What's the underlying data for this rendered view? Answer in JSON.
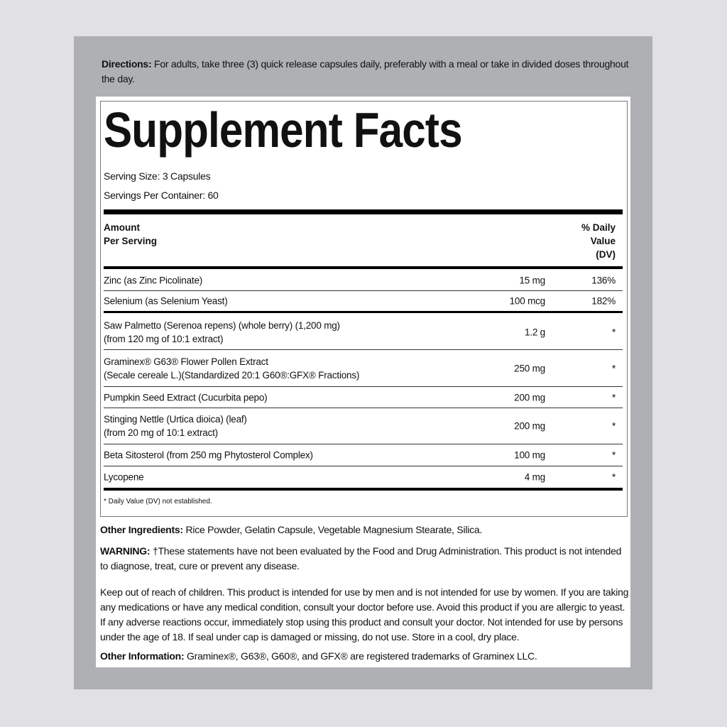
{
  "directions": {
    "label": "Directions:",
    "text": " For adults, take three (3) quick release capsules daily, preferably with a meal or take in divided doses throughout the day."
  },
  "facts": {
    "title": "Supplement Facts",
    "serving_size": "Serving Size: 3 Capsules",
    "servings_per_container": "Servings Per Container: 60",
    "header_amount_1": "Amount",
    "header_amount_2": "Per Serving",
    "header_dv_1": "% Daily",
    "header_dv_2": "Value",
    "header_dv_3": "(DV)",
    "rows": [
      {
        "name1": "Zinc (as Zinc Picolinate)",
        "name2": "",
        "amount": "15 mg",
        "dv": "136%"
      },
      {
        "name1": "Selenium (as Selenium Yeast)",
        "name2": "",
        "amount": "100 mcg",
        "dv": "182%"
      },
      {
        "name1": "Saw Palmetto (Serenoa repens) (whole berry) (1,200 mg)",
        "name2": "(from 120 mg of 10:1 extract)",
        "amount": "1.2 g",
        "dv": "*"
      },
      {
        "name1": "Graminex® G63® Flower Pollen Extract",
        "name2": "(Secale cereale L.)(Standardized 20:1 G60®:GFX® Fractions)",
        "amount": "250 mg",
        "dv": "*"
      },
      {
        "name1": "Pumpkin Seed Extract (Cucurbita pepo)",
        "name2": "",
        "amount": "200 mg",
        "dv": "*"
      },
      {
        "name1": "Stinging Nettle (Urtica dioica) (leaf)",
        "name2": "(from 20 mg of 10:1 extract)",
        "amount": "200 mg",
        "dv": "*"
      },
      {
        "name1": "Beta Sitosterol (from 250 mg Phytosterol Complex)",
        "name2": "",
        "amount": "100 mg",
        "dv": "*"
      },
      {
        "name1": "Lycopene",
        "name2": "",
        "amount": "4 mg",
        "dv": "*"
      }
    ],
    "footnote": "* Daily Value (DV) not established."
  },
  "other_ingredients": {
    "label": "Other Ingredients:",
    "text": " Rice Powder, Gelatin Capsule, Vegetable Magnesium Stearate, Silica."
  },
  "warning": {
    "label": "WARNING:",
    "text": " †These statements have not been evaluated by the Food and Drug Administration. This product is not intended to diagnose, treat, cure or prevent any disease."
  },
  "caution": "Keep out of reach of children. This product is intended for use by men and is not intended for use by women. If you are taking any medications or have any medical condition, consult your doctor before use. Avoid this product if you are allergic to yeast. If any adverse reactions occur, immediately stop using this product and consult your doctor. Not intended for use by persons under the age of 18. If seal under cap is damaged or missing, do not use. Store in a cool, dry place.",
  "other_information": {
    "label": "Other Information:",
    "text": " Graminex®, G63®, G60®, and GFX® are registered trademarks of Graminex LLC."
  }
}
